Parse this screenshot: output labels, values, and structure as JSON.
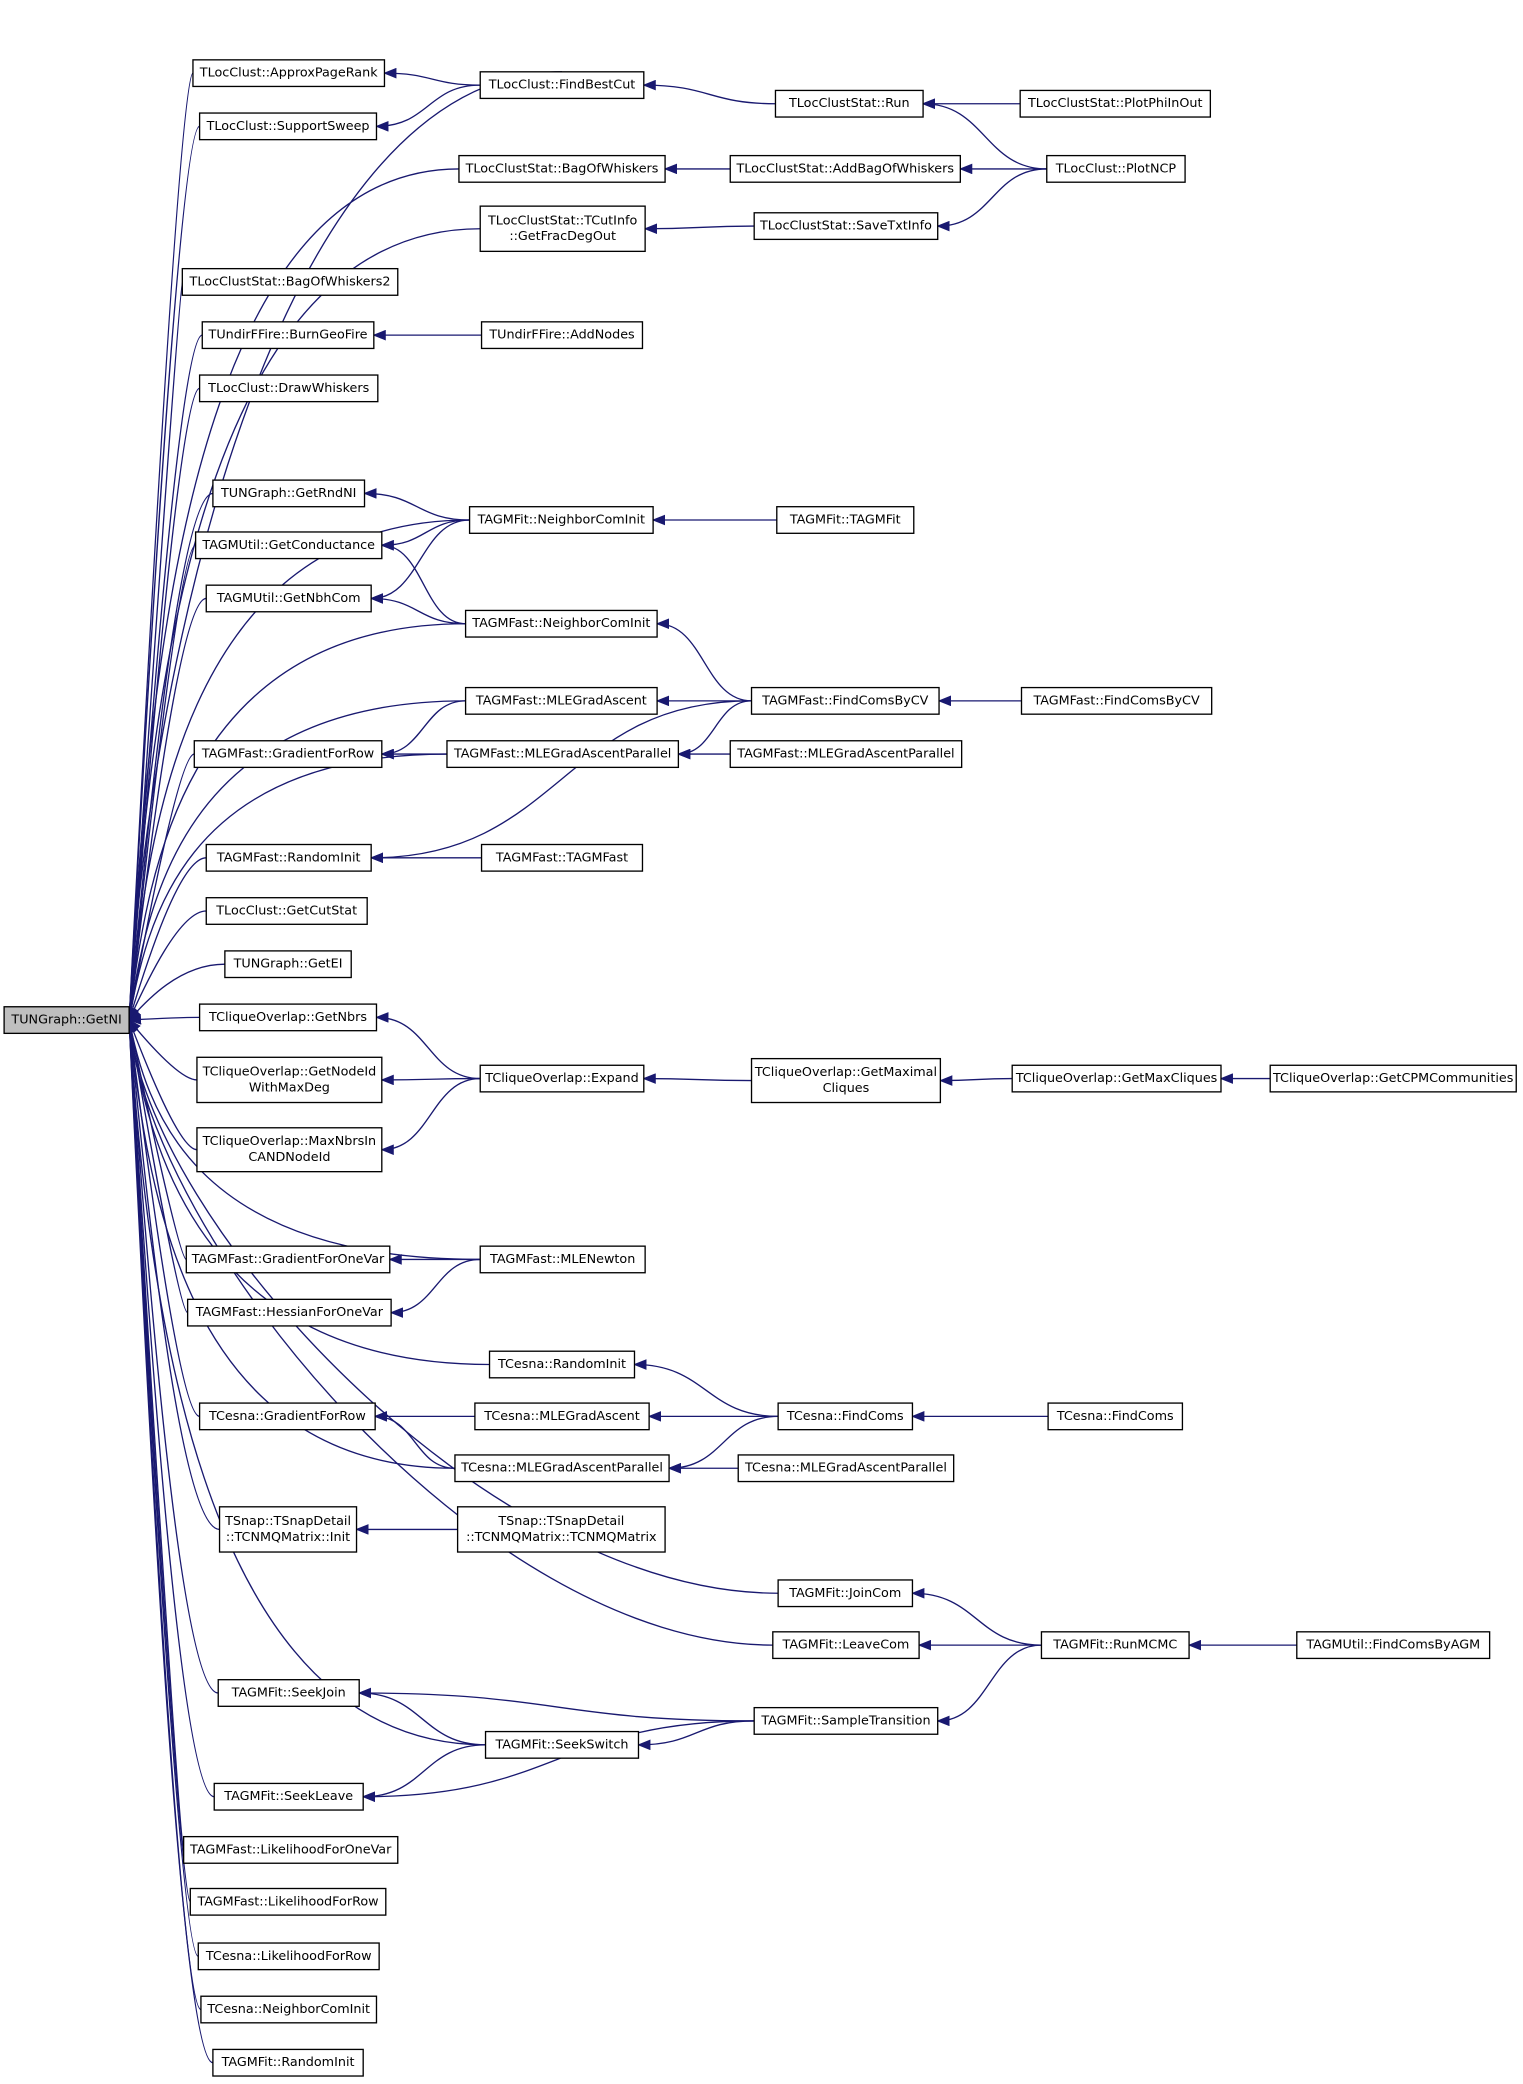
{
  "nodes": [
    {
      "lines": [
        "TUNGraph::GetNI"
      ]
    },
    {
      "lines": [
        "TLocClust::ApproxPageRank"
      ]
    },
    {
      "lines": [
        "TLocClust::SupportSweep"
      ]
    },
    {
      "lines": [
        "TLocClustStat::BagOfWhiskers"
      ]
    },
    {
      "lines": [
        "TLocClustStat::TCutInfo",
        "::GetFracDegOut"
      ]
    },
    {
      "lines": [
        "TLocClustStat::BagOfWhiskers2"
      ]
    },
    {
      "lines": [
        "TUndirFFire::BurnGeoFire"
      ]
    },
    {
      "lines": [
        "TLocClust::DrawWhiskers"
      ]
    },
    {
      "lines": [
        "TUNGraph::GetRndNI"
      ]
    },
    {
      "lines": [
        "TAGMUtil::GetConductance"
      ]
    },
    {
      "lines": [
        "TAGMUtil::GetNbhCom"
      ]
    },
    {
      "lines": [
        "TAGMFast::GradientForRow"
      ]
    },
    {
      "lines": [
        "TAGMFast::RandomInit"
      ]
    },
    {
      "lines": [
        "TLocClust::GetCutStat"
      ]
    },
    {
      "lines": [
        "TUNGraph::GetEI"
      ]
    },
    {
      "lines": [
        "TCliqueOverlap::GetNbrs"
      ]
    },
    {
      "lines": [
        "TCliqueOverlap::GetNodeId",
        "WithMaxDeg"
      ]
    },
    {
      "lines": [
        "TCliqueOverlap::MaxNbrsIn",
        "CANDNodeId"
      ]
    },
    {
      "lines": [
        "TAGMFast::GradientForOneVar"
      ]
    },
    {
      "lines": [
        "TAGMFast::HessianForOneVar"
      ]
    },
    {
      "lines": [
        "TCesna::GradientForRow"
      ]
    },
    {
      "lines": [
        "TSnap::TSnapDetail",
        "::TCNMQMatrix::Init"
      ]
    },
    {
      "lines": [
        "TAGMFit::SeekJoin"
      ]
    },
    {
      "lines": [
        "TAGMFit::SeekLeave"
      ]
    },
    {
      "lines": [
        "TAGMFast::LikelihoodForOneVar"
      ]
    },
    {
      "lines": [
        "TAGMFast::LikelihoodForRow"
      ]
    },
    {
      "lines": [
        "TCesna::LikelihoodForRow"
      ]
    },
    {
      "lines": [
        "TCesna::NeighborComInit"
      ]
    },
    {
      "lines": [
        "TAGMFit::RandomInit"
      ]
    },
    {
      "lines": [
        "TLocClust::FindBestCut"
      ]
    },
    {
      "lines": [
        "TUndirFFire::AddNodes"
      ]
    },
    {
      "lines": [
        "TAGMFit::NeighborComInit"
      ]
    },
    {
      "lines": [
        "TAGMFast::NeighborComInit"
      ]
    },
    {
      "lines": [
        "TAGMFast::MLEGradAscent"
      ]
    },
    {
      "lines": [
        "TAGMFast::MLEGradAscentParallel"
      ]
    },
    {
      "lines": [
        "TAGMFast::TAGMFast"
      ]
    },
    {
      "lines": [
        "TCliqueOverlap::Expand"
      ]
    },
    {
      "lines": [
        "TAGMFast::MLENewton"
      ]
    },
    {
      "lines": [
        "TCesna::RandomInit"
      ]
    },
    {
      "lines": [
        "TCesna::MLEGradAscent"
      ]
    },
    {
      "lines": [
        "TCesna::MLEGradAscentParallel"
      ]
    },
    {
      "lines": [
        "TSnap::TSnapDetail",
        "::TCNMQMatrix::TCNMQMatrix"
      ]
    },
    {
      "lines": [
        "TAGMFit::SeekSwitch"
      ]
    },
    {
      "lines": [
        "TLocClustStat::Run"
      ]
    },
    {
      "lines": [
        "TLocClustStat::AddBagOfWhiskers"
      ]
    },
    {
      "lines": [
        "TLocClustStat::SaveTxtInfo"
      ]
    },
    {
      "lines": [
        "TAGMFit::TAGMFit"
      ]
    },
    {
      "lines": [
        "TAGMFast::FindComsByCV"
      ]
    },
    {
      "lines": [
        "TAGMFast::MLEGradAscentParallel"
      ]
    },
    {
      "lines": [
        "TCliqueOverlap::GetMaximal",
        "Cliques"
      ]
    },
    {
      "lines": [
        "TCesna::FindComs"
      ]
    },
    {
      "lines": [
        "TCesna::MLEGradAscentParallel"
      ]
    },
    {
      "lines": [
        "TAGMFit::JoinCom"
      ]
    },
    {
      "lines": [
        "TAGMFit::LeaveCom"
      ]
    },
    {
      "lines": [
        "TAGMFit::SampleTransition"
      ]
    },
    {
      "lines": [
        "TLocClustStat::PlotPhiInOut"
      ]
    },
    {
      "lines": [
        "TLocClust::PlotNCP"
      ]
    },
    {
      "lines": [
        "TAGMFast::FindComsByCV"
      ]
    },
    {
      "lines": [
        "TCliqueOverlap::GetMaxCliques"
      ]
    },
    {
      "lines": [
        "TCesna::FindComs"
      ]
    },
    {
      "lines": [
        "TAGMFit::RunMCMC"
      ]
    },
    {
      "lines": [
        "TCliqueOverlap::GetCPMCommunities"
      ]
    },
    {
      "lines": [
        "TAGMUtil::FindComsByAGM"
      ]
    }
  ]
}
